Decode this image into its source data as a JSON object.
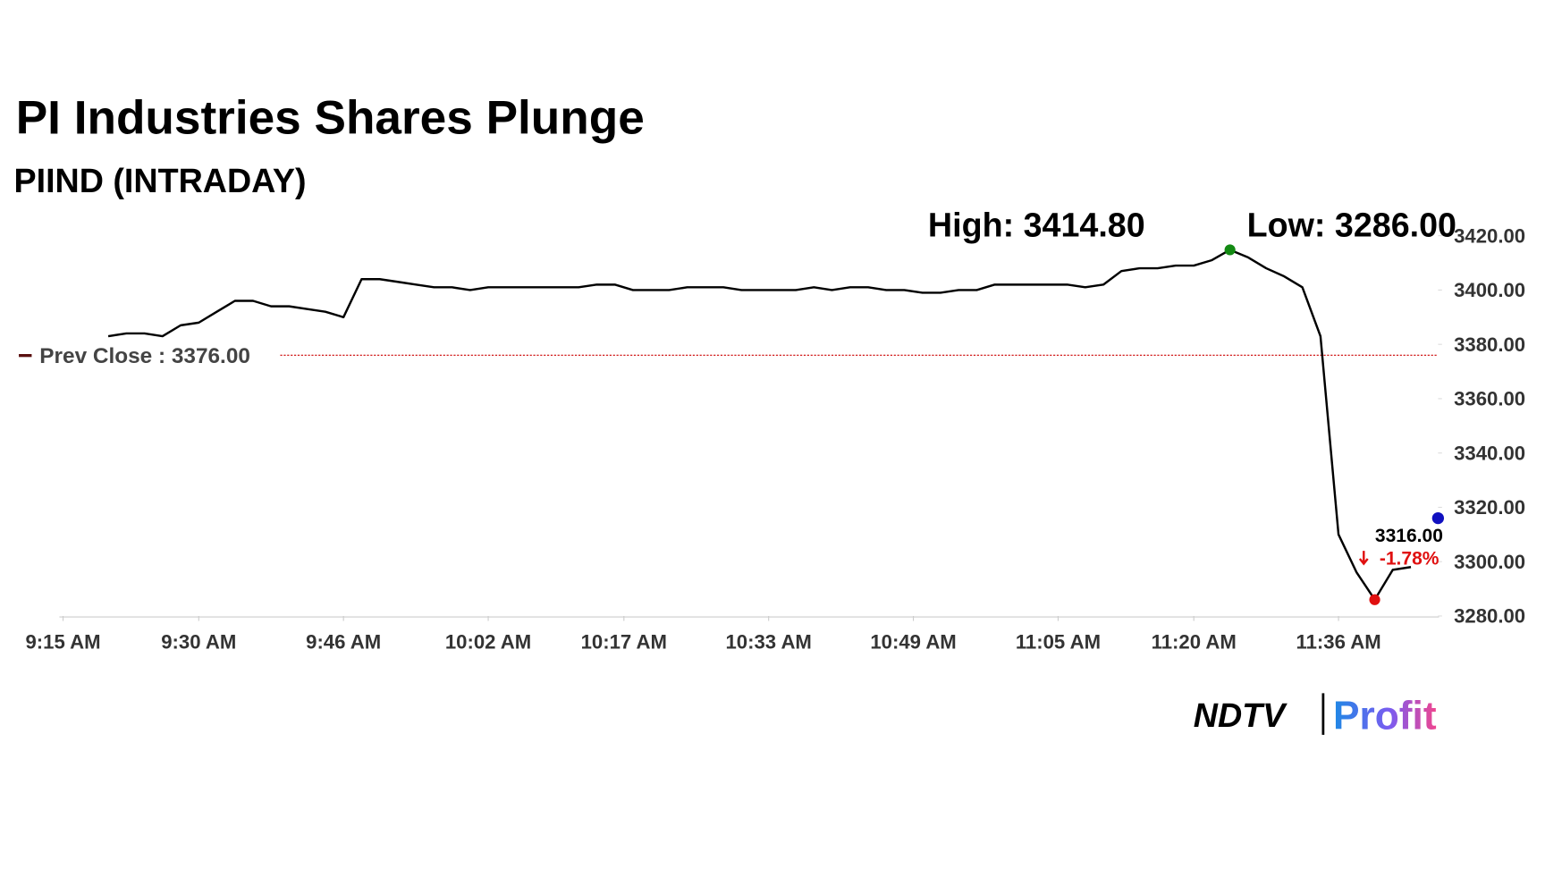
{
  "chart_data": {
    "type": "line",
    "title": "PI Industries Shares Plunge",
    "subtitle": "PIIND (INTRADAY)",
    "x": [
      "9:20 AM",
      "9:22 AM",
      "9:24 AM",
      "9:26 AM",
      "9:28 AM",
      "9:30 AM",
      "9:32 AM",
      "9:34 AM",
      "9:36 AM",
      "9:38 AM",
      "9:40 AM",
      "9:42 AM",
      "9:44 AM",
      "9:46 AM",
      "9:48 AM",
      "9:50 AM",
      "9:52 AM",
      "9:54 AM",
      "9:56 AM",
      "9:58 AM",
      "10:00 AM",
      "10:02 AM",
      "10:04 AM",
      "10:06 AM",
      "10:08 AM",
      "10:10 AM",
      "10:12 AM",
      "10:14 AM",
      "10:16 AM",
      "10:18 AM",
      "10:20 AM",
      "10:22 AM",
      "10:24 AM",
      "10:26 AM",
      "10:28 AM",
      "10:30 AM",
      "10:32 AM",
      "10:34 AM",
      "10:36 AM",
      "10:38 AM",
      "10:40 AM",
      "10:42 AM",
      "10:44 AM",
      "10:46 AM",
      "10:48 AM",
      "10:50 AM",
      "10:52 AM",
      "10:54 AM",
      "10:56 AM",
      "10:58 AM",
      "11:00 AM",
      "11:02 AM",
      "11:04 AM",
      "11:06 AM",
      "11:08 AM",
      "11:10 AM",
      "11:12 AM",
      "11:14 AM",
      "11:16 AM",
      "11:18 AM",
      "11:20 AM",
      "11:22 AM",
      "11:24 AM",
      "11:26 AM",
      "11:28 AM",
      "11:30 AM",
      "11:32 AM",
      "11:34 AM",
      "11:36 AM",
      "11:38 AM",
      "11:40 AM",
      "11:42 AM",
      "11:44 AM"
    ],
    "series": [
      {
        "color": "#000000",
        "values": [
          3383,
          3384,
          3384,
          3383,
          3387,
          3388,
          3392,
          3396,
          3396,
          3394,
          3394,
          3393,
          3392,
          3390,
          3404,
          3404,
          3403,
          3402,
          3401,
          3401,
          3400,
          3401,
          3401,
          3401,
          3401,
          3401,
          3401,
          3402,
          3402,
          3400,
          3400,
          3400,
          3401,
          3401,
          3401,
          3400,
          3400,
          3400,
          3400,
          3401,
          3400,
          3401,
          3401,
          3400,
          3400,
          3399,
          3399,
          3400,
          3400,
          3402,
          3402,
          3402,
          3402,
          3402,
          3401,
          3402,
          3407,
          3408,
          3408,
          3409,
          3409,
          3411,
          3414.8,
          3412,
          3408,
          3405,
          3401,
          3383,
          3310,
          3296,
          3286,
          3297,
          3298
        ]
      }
    ],
    "xlim": [
      "9:10 AM",
      "11:47 AM"
    ],
    "xticks": [
      "9:15 AM",
      "9:30 AM",
      "9:46 AM",
      "10:02 AM",
      "10:17 AM",
      "10:33 AM",
      "10:49 AM",
      "11:05 AM",
      "11:20 AM",
      "11:36 AM"
    ],
    "ylim": [
      3280,
      3420
    ],
    "yticks": [
      {
        "value": 3280,
        "label": "3280.00"
      },
      {
        "value": 3300,
        "label": "3300.00"
      },
      {
        "value": 3320,
        "label": "3320.00"
      },
      {
        "value": 3340,
        "label": "3340.00"
      },
      {
        "value": 3360,
        "label": "3360.00"
      },
      {
        "value": 3380,
        "label": "3380.00"
      },
      {
        "value": 3400,
        "label": "3400.00"
      },
      {
        "value": 3420,
        "label": "3420.00"
      }
    ],
    "prev_close": {
      "value": 3376,
      "label": "Prev Close : 3376.00",
      "color": "#cc0000"
    },
    "high": {
      "value": 3414.8,
      "label": "High: 3414.80",
      "color": "#138a13"
    },
    "low": {
      "value": 3286,
      "label": "Low: 3286.00",
      "color": "#e01010"
    },
    "last": {
      "value": 3316,
      "label": "3316.00",
      "change": "-1.78%",
      "color": "#1010c0",
      "change_color": "#e01010"
    },
    "brand": {
      "source": "NDTV",
      "name": "Profit"
    }
  }
}
